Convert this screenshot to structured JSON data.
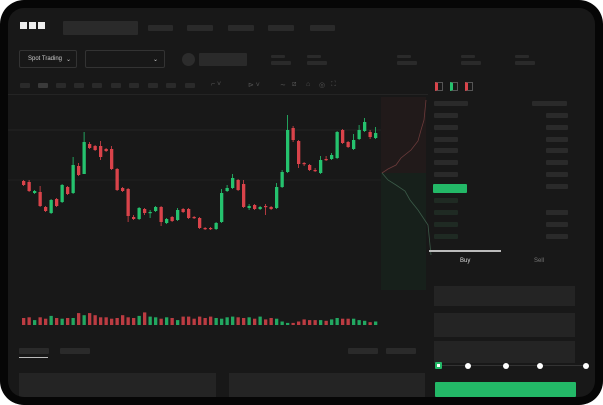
{
  "header": {
    "logo": "OKX"
  },
  "toolbar": {
    "market_select": "Spot Trading",
    "pair_select": ""
  },
  "trade_panel": {
    "tab_buy": "Buy",
    "tab_sell": "Sell"
  },
  "colors": {
    "up": "#25c26e",
    "down": "#d9434a",
    "background": "#181818",
    "accent": "#23b867"
  },
  "icons": [
    "chevron-down-icon",
    "line-tool-icon",
    "ruler-icon",
    "lock-icon",
    "eye-icon",
    "fullscreen-icon",
    "orderbook-both-icon",
    "orderbook-buy-icon",
    "orderbook-sell-icon"
  ],
  "candles": [
    [
      79,
      75,
      80,
      74
    ],
    [
      78,
      69,
      80,
      68
    ],
    [
      67,
      69,
      70,
      66
    ],
    [
      68,
      54,
      74,
      53
    ],
    [
      53,
      49,
      54,
      48
    ],
    [
      47,
      60,
      61,
      46
    ],
    [
      61,
      54,
      62,
      53
    ],
    [
      58,
      75,
      76,
      57
    ],
    [
      73,
      66,
      74,
      65
    ],
    [
      67,
      95,
      103,
      66
    ],
    [
      94,
      85,
      97,
      84
    ],
    [
      86,
      118,
      128,
      86
    ],
    [
      116,
      112,
      118,
      111
    ],
    [
      114,
      110,
      115,
      109
    ],
    [
      114,
      103,
      119,
      100
    ],
    [
      111,
      109,
      112,
      108
    ],
    [
      111,
      91,
      114,
      90
    ],
    [
      91,
      70,
      92,
      69
    ],
    [
      72,
      69,
      73,
      68
    ],
    [
      71,
      44,
      72,
      38
    ],
    [
      43,
      41,
      45,
      40
    ],
    [
      41,
      52,
      53,
      40
    ],
    [
      51,
      47,
      52,
      45
    ],
    [
      47,
      48,
      50,
      42
    ],
    [
      49,
      53,
      54,
      48
    ],
    [
      53,
      38,
      54,
      34
    ],
    [
      37,
      41,
      42,
      36
    ],
    [
      43,
      39,
      44,
      38
    ],
    [
      40,
      50,
      52,
      39
    ],
    [
      51,
      48,
      52,
      47
    ],
    [
      51,
      42,
      52,
      41
    ],
    [
      43,
      42,
      44,
      41
    ],
    [
      42,
      32,
      43,
      31
    ],
    [
      32,
      31,
      33,
      30
    ],
    [
      32,
      31,
      33,
      30
    ],
    [
      31,
      37,
      38,
      30
    ],
    [
      38,
      67,
      71,
      37
    ],
    [
      69,
      72,
      75,
      68
    ],
    [
      72,
      82,
      86,
      71
    ],
    [
      80,
      70,
      81,
      69
    ],
    [
      76,
      53,
      80,
      52
    ],
    [
      52,
      54,
      56,
      50
    ],
    [
      55,
      51,
      56,
      50
    ],
    [
      51,
      53,
      54,
      50
    ],
    [
      54,
      53,
      56,
      45
    ],
    [
      53,
      51,
      54,
      50
    ],
    [
      52,
      73,
      77,
      51
    ],
    [
      73,
      88,
      90,
      72
    ],
    [
      88,
      130,
      145,
      87
    ],
    [
      132,
      120,
      134,
      118
    ],
    [
      119,
      96,
      120,
      92
    ],
    [
      97,
      96,
      98,
      94
    ],
    [
      95,
      90,
      96,
      89
    ],
    [
      90,
      89,
      92,
      88
    ],
    [
      87,
      100,
      104,
      86
    ],
    [
      101,
      100,
      104,
      99
    ],
    [
      101,
      105,
      107,
      100
    ],
    [
      102,
      128,
      129,
      101
    ],
    [
      130,
      117,
      131,
      116
    ],
    [
      118,
      113,
      119,
      112
    ],
    [
      111,
      120,
      126,
      110
    ],
    [
      121,
      130,
      135,
      120
    ],
    [
      129,
      138,
      142,
      128
    ],
    [
      128,
      123,
      130,
      121
    ],
    [
      122,
      127,
      133,
      121
    ]
  ],
  "volumes": [
    10,
    11,
    7,
    11,
    9,
    13,
    10,
    9,
    10,
    10,
    17,
    14,
    17,
    14,
    11,
    11,
    9,
    10,
    14,
    11,
    10,
    13,
    18,
    12,
    11,
    9,
    11,
    10,
    7,
    12,
    12,
    9,
    12,
    10,
    12,
    10,
    9,
    11,
    12,
    11,
    10,
    11,
    9,
    12,
    8,
    10,
    9,
    5,
    3,
    3,
    5,
    8,
    7,
    7,
    7,
    6,
    8,
    10,
    9,
    9,
    9,
    7,
    6,
    4,
    5
  ],
  "order_size_fraction": 0
}
